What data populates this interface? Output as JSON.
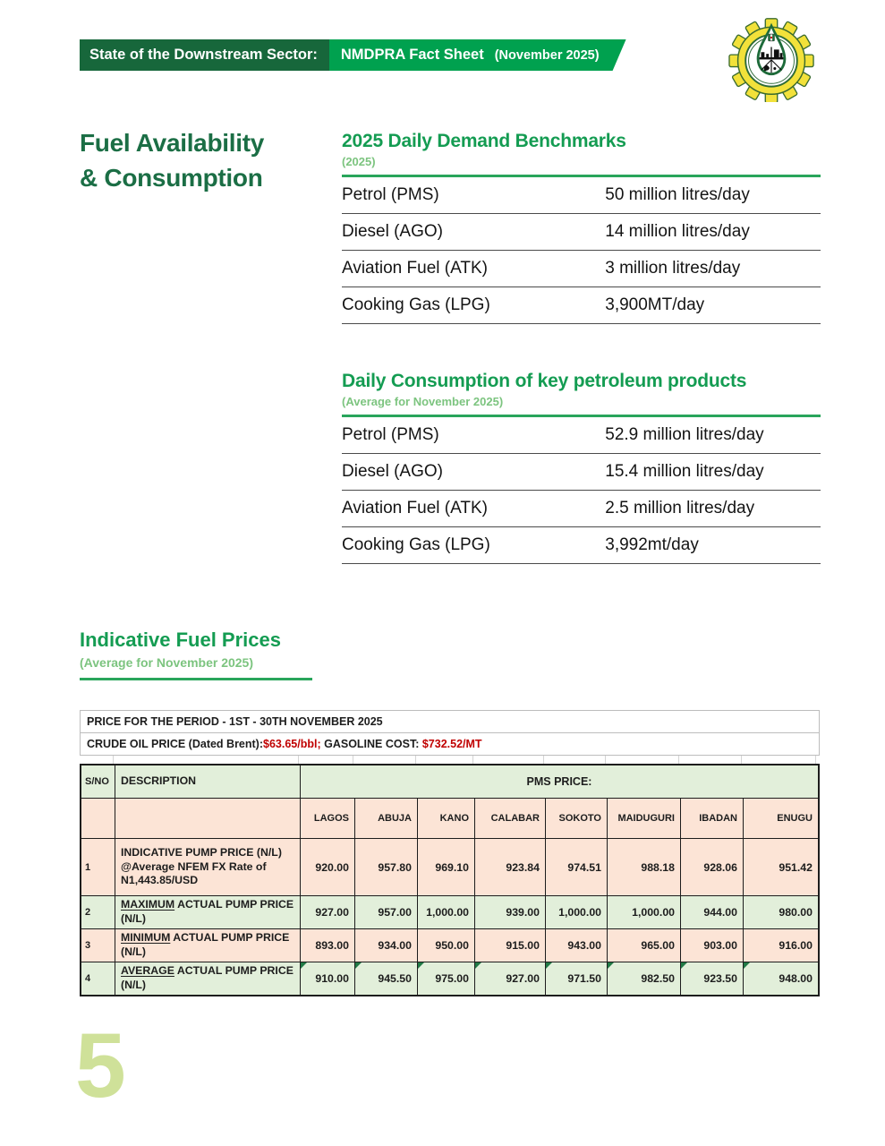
{
  "header": {
    "segment1": "State of the Downstream Sector:",
    "segment2": "NMDPRA Fact Sheet",
    "segment3": "(November 2025)"
  },
  "section": {
    "title_line1": "Fuel Availability",
    "title_line2": "& Consumption"
  },
  "benchmarks": {
    "title": "2025 Daily Demand Benchmarks",
    "subtitle": "(2025)",
    "rows": [
      {
        "label": "Petrol (PMS)",
        "value": "50 million litres/day"
      },
      {
        "label": "Diesel (AGO)",
        "value": "14 million litres/day"
      },
      {
        "label": "Aviation Fuel (ATK)",
        "value": "3 million litres/day"
      },
      {
        "label": "Cooking Gas (LPG)",
        "value": "3,900MT/day"
      }
    ]
  },
  "consumption": {
    "title": "Daily Consumption of key petroleum products",
    "subtitle": "(Average for November 2025)",
    "rows": [
      {
        "label": "Petrol (PMS)",
        "value": "52.9 million litres/day"
      },
      {
        "label": "Diesel (AGO)",
        "value": "15.4 million litres/day"
      },
      {
        "label": "Aviation Fuel (ATK)",
        "value": "2.5 million litres/day"
      },
      {
        "label": "Cooking Gas (LPG)",
        "value": "3,992mt/day"
      }
    ]
  },
  "prices": {
    "title": "Indicative Fuel Prices",
    "subtitle": "(Average for November 2025)",
    "period": "PRICE FOR THE PERIOD  - 1ST - 30TH NOVEMBER 2025",
    "crude_label": "CRUDE OIL PRICE (Dated Brent): ",
    "crude_value": "$63.65/bbl;",
    "gasoline_label": " GASOLINE COST: ",
    "gasoline_value": "$732.52/MT",
    "table": {
      "sno_header": "S/NO",
      "desc_header": "DESCRIPTION",
      "group_header": "PMS PRICE:",
      "cities": [
        "LAGOS",
        "ABUJA",
        "KANO",
        "CALABAR",
        "SOKOTO",
        "MAIDUGURI",
        "IBADAN",
        "ENUGU"
      ],
      "rows": [
        {
          "sno": "1",
          "underline": "",
          "desc": "INDICATIVE PUMP PRICE (N/L) @Average NFEM FX Rate of N1,443.85/USD",
          "values": [
            "920.00",
            "957.80",
            "969.10",
            "923.84",
            "974.51",
            "988.18",
            "928.06",
            "951.42"
          ]
        },
        {
          "sno": "2",
          "underline": "MAXIMUM",
          "desc": " ACTUAL PUMP PRICE (N/L)",
          "values": [
            "927.00",
            "957.00",
            "1,000.00",
            "939.00",
            "1,000.00",
            "1,000.00",
            "944.00",
            "980.00"
          ]
        },
        {
          "sno": "3",
          "underline": "MINIMUM",
          "desc": " ACTUAL PUMP PRICE (N/L)",
          "values": [
            "893.00",
            "934.00",
            "950.00",
            "915.00",
            "943.00",
            "965.00",
            "903.00",
            "916.00"
          ]
        },
        {
          "sno": "4",
          "underline": "AVERAGE",
          "desc": " ACTUAL PUMP PRICE (N/L)",
          "values": [
            "910.00",
            "945.50",
            "975.00",
            "927.00",
            "971.50",
            "982.50",
            "923.50",
            "948.00"
          ]
        }
      ]
    }
  },
  "page_number": "5",
  "colors": {
    "banner_dark_green": "#17673b",
    "banner_green": "#00a14f",
    "title_green": "#149c52",
    "subtitle_green": "#7cc47f",
    "heading_dark_green": "#1b6e45",
    "table_fill_green": "#e2efda",
    "table_fill_peach": "#fce4d6",
    "price_red": "#c00000",
    "page_number_green": "#cfe199"
  }
}
